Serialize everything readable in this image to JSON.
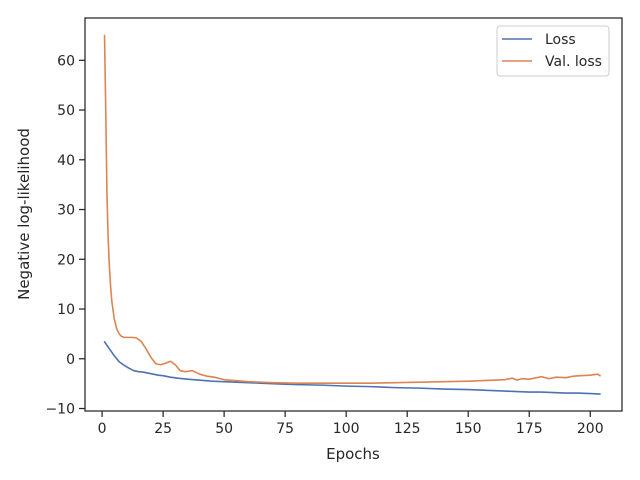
{
  "chart_data": {
    "type": "line",
    "title": "",
    "xlabel": "Epochs",
    "ylabel": "Negative log-likelihood",
    "xlim": [
      -7,
      213
    ],
    "ylim": [
      -10.5,
      68.5
    ],
    "xticks": [
      0,
      25,
      50,
      75,
      100,
      125,
      150,
      175,
      200
    ],
    "yticks": [
      -10,
      0,
      10,
      20,
      30,
      40,
      50,
      60
    ],
    "grid": false,
    "legend_position": "top-right",
    "series": [
      {
        "name": "Loss",
        "color": "#4c72b0",
        "x": [
          1,
          3,
          5,
          7,
          9,
          11,
          13,
          15,
          17,
          19,
          21,
          23,
          25,
          28,
          31,
          35,
          40,
          45,
          50,
          55,
          60,
          65,
          70,
          75,
          80,
          90,
          100,
          110,
          120,
          130,
          140,
          150,
          160,
          165,
          170,
          175,
          180,
          185,
          190,
          195,
          200,
          204
        ],
        "values": [
          3.4,
          2.0,
          0.6,
          -0.6,
          -1.3,
          -1.9,
          -2.4,
          -2.6,
          -2.7,
          -2.9,
          -3.1,
          -3.3,
          -3.4,
          -3.7,
          -3.9,
          -4.1,
          -4.3,
          -4.5,
          -4.6,
          -4.7,
          -4.8,
          -4.9,
          -5.0,
          -5.1,
          -5.2,
          -5.3,
          -5.5,
          -5.6,
          -5.8,
          -5.9,
          -6.1,
          -6.2,
          -6.4,
          -6.5,
          -6.6,
          -6.7,
          -6.7,
          -6.8,
          -6.9,
          -6.9,
          -7.0,
          -7.1
        ]
      },
      {
        "name": "Val. loss",
        "color": "#dd8452",
        "x": [
          1,
          1.5,
          2,
          2.5,
          3,
          3.5,
          4,
          5,
          6,
          7,
          8,
          9,
          10,
          12,
          14,
          16,
          18,
          20,
          22,
          24,
          26,
          28,
          30,
          32,
          34,
          37,
          40,
          43,
          46,
          50,
          55,
          60,
          70,
          80,
          90,
          100,
          110,
          120,
          130,
          140,
          150,
          155,
          160,
          165,
          168,
          170,
          172,
          175,
          178,
          180,
          183,
          186,
          190,
          193,
          196,
          200,
          203,
          204
        ],
        "values": [
          65.0,
          50.0,
          33.0,
          24.0,
          18.5,
          14.5,
          11.5,
          8.0,
          6.0,
          5.0,
          4.5,
          4.3,
          4.3,
          4.3,
          4.2,
          3.5,
          2.0,
          0.3,
          -1.0,
          -1.2,
          -0.9,
          -0.5,
          -1.2,
          -2.4,
          -2.6,
          -2.4,
          -3.1,
          -3.5,
          -3.7,
          -4.2,
          -4.4,
          -4.6,
          -4.8,
          -4.9,
          -4.9,
          -4.9,
          -4.9,
          -4.8,
          -4.7,
          -4.6,
          -4.5,
          -4.4,
          -4.3,
          -4.2,
          -3.9,
          -4.3,
          -4.0,
          -4.1,
          -3.8,
          -3.6,
          -4.0,
          -3.7,
          -3.8,
          -3.5,
          -3.4,
          -3.3,
          -3.1,
          -3.4
        ]
      }
    ]
  }
}
